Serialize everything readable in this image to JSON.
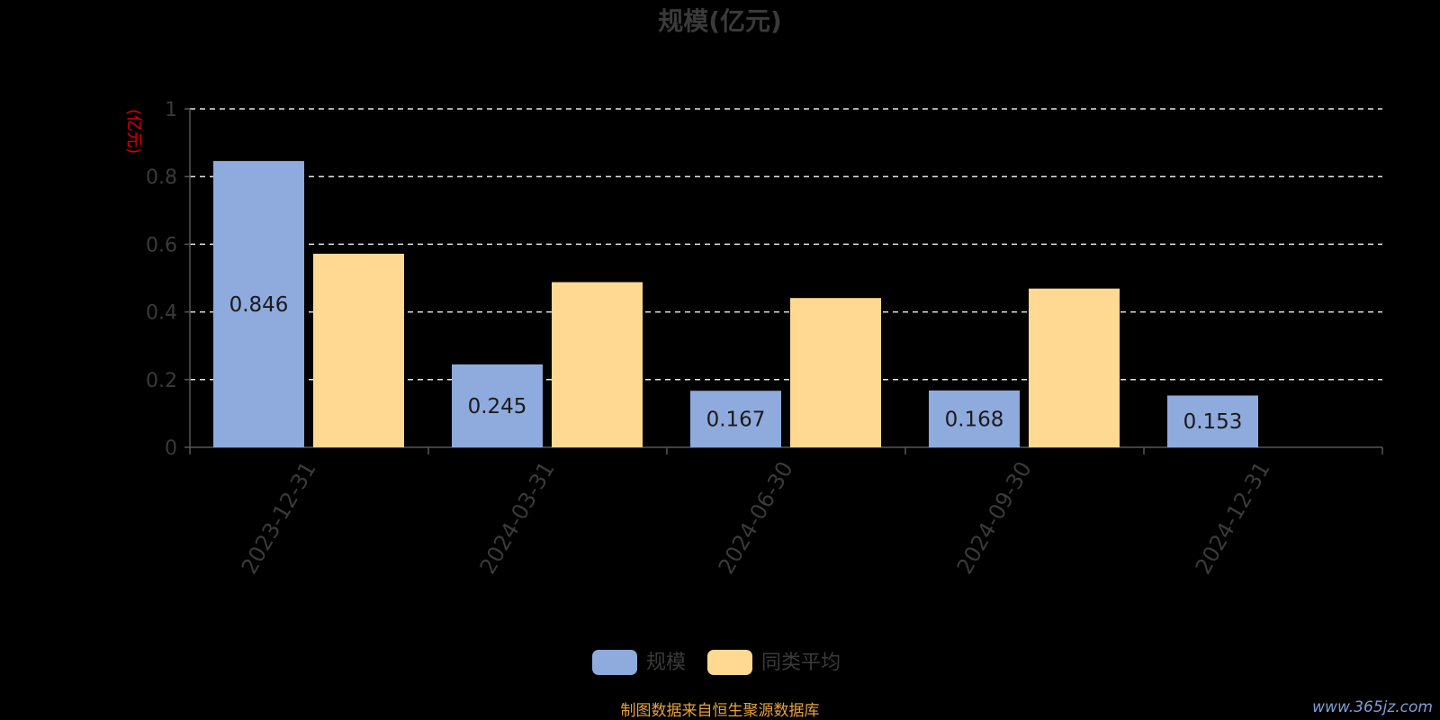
{
  "chart_data": {
    "type": "bar",
    "title": "规模(亿元)",
    "ylabel": "(亿元)",
    "ylim": [
      0,
      1
    ],
    "yticks": [
      "0",
      "0.2",
      "0.4",
      "0.6",
      "0.8",
      "1"
    ],
    "grid": true,
    "legend_position": "bottom-center",
    "categories": [
      "2023-12-31",
      "2024-03-31",
      "2024-06-30",
      "2024-09-30",
      "2024-12-31"
    ],
    "series": [
      {
        "name": "规模",
        "color": "#8faadc",
        "values": [
          0.846,
          0.245,
          0.167,
          0.168,
          0.153
        ],
        "labels": [
          "0.846",
          "0.245",
          "0.167",
          "0.168",
          "0.153"
        ]
      },
      {
        "name": "同类平均",
        "color": "#ffd992",
        "values": [
          0.572,
          0.488,
          0.441,
          0.469,
          null
        ]
      }
    ],
    "source_note": "制图数据来自恒生聚源数据库"
  },
  "watermark": "www.365jz.com"
}
